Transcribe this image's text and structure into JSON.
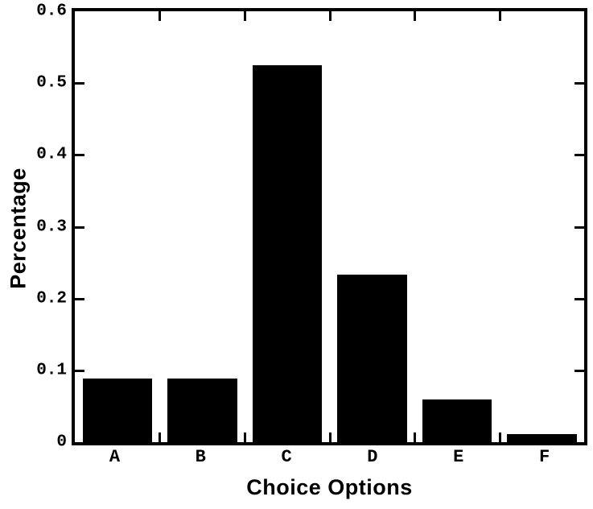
{
  "figure": {
    "background": "#ffffff",
    "axis_color": "#000000"
  },
  "chart_data": {
    "type": "bar",
    "title": "",
    "xlabel": "Choice Options",
    "ylabel": "Percentage",
    "categories": [
      "A",
      "B",
      "C",
      "D",
      "E",
      "F"
    ],
    "values": [
      0.089,
      0.089,
      0.525,
      0.233,
      0.059,
      0.011
    ],
    "bar_color": "#000000",
    "ylim": [
      0,
      0.6
    ],
    "yticks": [
      0,
      0.1,
      0.2,
      0.3,
      0.4,
      0.5,
      0.6
    ],
    "ytick_labels": [
      "0",
      "0.1",
      "0.2",
      "0.3",
      "0.4",
      "0.5",
      "0.6"
    ],
    "grid": false,
    "legend": null,
    "axes_style": "boxed, inward mirrored ticks"
  }
}
